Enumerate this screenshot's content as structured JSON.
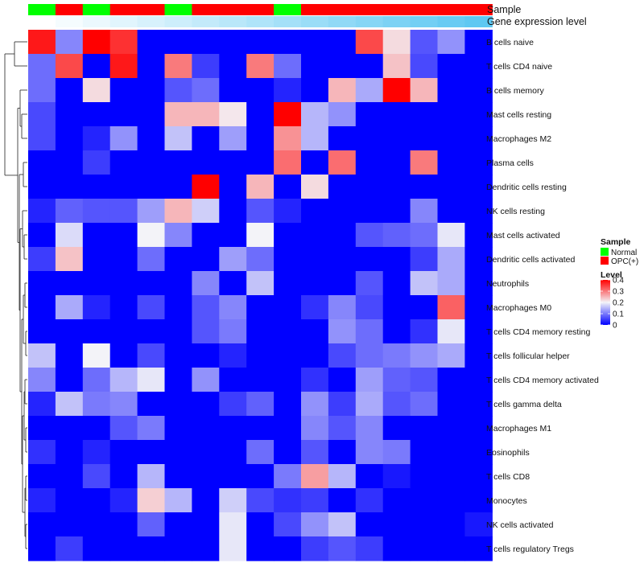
{
  "chart_data": {
    "type": "heatmap",
    "annotation_labels": [
      "Sample",
      "Gene expression level"
    ],
    "sample_annotation": [
      "Normal",
      "OPC(+)",
      "Normal",
      "OPC(+)",
      "OPC(+)",
      "Normal",
      "OPC(+)",
      "OPC(+)",
      "OPC(+)",
      "Normal",
      "OPC(+)",
      "OPC(+)",
      "OPC(+)",
      "OPC(+)",
      "OPC(+)",
      "OPC(+)",
      "OPC(+)"
    ],
    "gene_expression_rank": [
      1,
      2,
      3,
      4,
      5,
      6,
      7,
      8,
      9,
      10,
      11,
      12,
      13,
      14,
      15,
      16,
      17
    ],
    "rows": [
      "B cells naive",
      "T cells CD4 naive",
      "B cells memory",
      "Mast cells resting",
      "Macrophages M2",
      "Plasma cells",
      "Dendritic cells resting",
      "NK cells resting",
      "Mast cells activated",
      "Dendritic cells activated",
      "Neutrophils",
      "Macrophages M0",
      "T cells CD4 memory resting",
      "T cells follicular helper",
      "T cells CD4 memory activated",
      "T cells gamma delta",
      "Macrophages M1",
      "Eosinophils",
      "T cells CD8",
      "Monocytes",
      "NK cells activated",
      "T cells regulatory  Tregs"
    ],
    "values": [
      [
        0.38,
        0.11,
        0.4,
        0.36,
        0,
        0,
        0,
        0,
        0,
        0,
        0,
        0,
        0.34,
        0.22,
        0.07,
        0.12,
        0
      ],
      [
        0.09,
        0.34,
        0,
        0.38,
        0,
        0.3,
        0.05,
        0,
        0.3,
        0.09,
        0,
        0,
        0,
        0.24,
        0.06,
        0,
        0
      ],
      [
        0.09,
        0,
        0.22,
        0,
        0,
        0.07,
        0.09,
        0,
        0,
        0.03,
        0,
        0.25,
        0.14,
        0.4,
        0.25,
        0,
        0
      ],
      [
        0.06,
        0,
        0,
        0,
        0,
        0.25,
        0.25,
        0.21,
        0,
        0.4,
        0.15,
        0.12,
        0,
        0,
        0,
        0,
        0
      ],
      [
        0.06,
        0,
        0.03,
        0.12,
        0,
        0.16,
        0,
        0.13,
        0,
        0.28,
        0.15,
        0,
        0,
        0,
        0,
        0,
        0
      ],
      [
        0,
        0,
        0.05,
        0,
        0,
        0,
        0,
        0,
        0,
        0.31,
        0,
        0.31,
        0,
        0,
        0.3,
        0,
        0
      ],
      [
        0,
        0,
        0,
        0,
        0,
        0,
        0.4,
        0,
        0.25,
        0,
        0.22,
        0,
        0,
        0,
        0,
        0,
        0
      ],
      [
        0.03,
        0.08,
        0.07,
        0.07,
        0.13,
        0.25,
        0.17,
        0,
        0.07,
        0.03,
        0,
        0,
        0,
        0,
        0.11,
        0,
        0
      ],
      [
        0,
        0.18,
        0,
        0,
        0.2,
        0.11,
        0,
        0,
        0.2,
        0,
        0,
        0,
        0.07,
        0.08,
        0.09,
        0.19,
        0
      ],
      [
        0.05,
        0.24,
        0,
        0,
        0.09,
        0,
        0,
        0.13,
        0.09,
        0,
        0,
        0,
        0,
        0,
        0.05,
        0.14,
        0
      ],
      [
        0,
        0,
        0,
        0,
        0,
        0,
        0.11,
        0,
        0.16,
        0,
        0,
        0,
        0.07,
        0,
        0.16,
        0.14,
        0
      ],
      [
        0,
        0.14,
        0.03,
        0,
        0.06,
        0,
        0.07,
        0.11,
        0,
        0,
        0.04,
        0.11,
        0.06,
        0,
        0,
        0.32,
        0
      ],
      [
        0,
        0,
        0,
        0,
        0,
        0,
        0.07,
        0.1,
        0,
        0,
        0,
        0.12,
        0.09,
        0,
        0.04,
        0.19,
        0
      ],
      [
        0.16,
        0,
        0.2,
        0,
        0.06,
        0,
        0,
        0.03,
        0,
        0,
        0,
        0.06,
        0.09,
        0.1,
        0.12,
        0.14,
        0
      ],
      [
        0.11,
        0,
        0.09,
        0.15,
        0.19,
        0,
        0.12,
        0,
        0,
        0,
        0.04,
        0,
        0.13,
        0.08,
        0.07,
        0,
        0
      ],
      [
        0.03,
        0.16,
        0.1,
        0.11,
        0,
        0,
        0,
        0.05,
        0.08,
        0,
        0.12,
        0.05,
        0.14,
        0.07,
        0.09,
        0,
        0
      ],
      [
        0,
        0,
        0,
        0.07,
        0.1,
        0,
        0,
        0,
        0,
        0,
        0.11,
        0.07,
        0.11,
        0,
        0,
        0,
        0
      ],
      [
        0.04,
        0,
        0.03,
        0,
        0,
        0,
        0,
        0,
        0.09,
        0,
        0.07,
        0,
        0.11,
        0.1,
        0,
        0,
        0
      ],
      [
        0,
        0,
        0.06,
        0,
        0.15,
        0,
        0,
        0,
        0,
        0.1,
        0.27,
        0.15,
        0,
        0.02,
        0,
        0,
        0
      ],
      [
        0.03,
        0,
        0,
        0.03,
        0.23,
        0.15,
        0,
        0.17,
        0.06,
        0.04,
        0.05,
        0,
        0.04,
        0,
        0,
        0,
        0
      ],
      [
        0,
        0,
        0,
        0,
        0.08,
        0,
        0,
        0.19,
        0,
        0.06,
        0.12,
        0.16,
        0,
        0,
        0,
        0,
        0.02
      ],
      [
        0,
        0.05,
        0,
        0,
        0,
        0,
        0,
        0.19,
        0,
        0,
        0.05,
        0.07,
        0.05,
        0,
        0,
        0,
        0
      ]
    ],
    "color_scale": {
      "min": 0,
      "max": 0.4,
      "low": "#0000ff",
      "mid": "#f3f3f8",
      "high": "#ff0000"
    },
    "legend": {
      "sample_title": "Sample",
      "sample_entries": [
        {
          "label": "Normal",
          "color": "#00ff00"
        },
        {
          "label": "OPC(+)",
          "color": "#ff0000"
        }
      ],
      "level_title": "Level",
      "level_ticks": [
        0.4,
        0.3,
        0.2,
        0.1,
        0
      ],
      "level_tick_labels": [
        "0.4",
        "0.3",
        "0.2",
        "0.1",
        "0"
      ]
    },
    "annotation_colors": {
      "Normal": "#00ff00",
      "OPC(+)": "#ff0000",
      "expr_low": "#ffffff",
      "expr_high": "#5ec8f2"
    }
  }
}
